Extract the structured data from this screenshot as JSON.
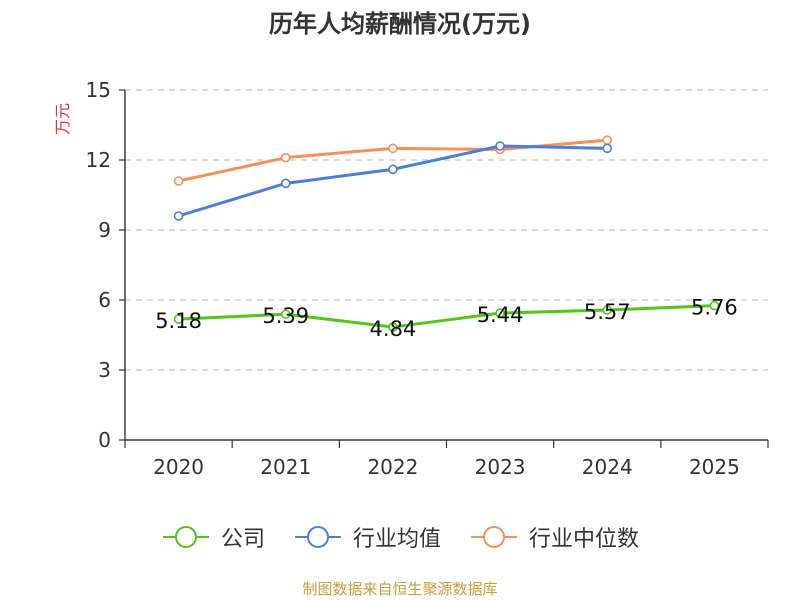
{
  "chart_data": {
    "type": "line",
    "title": "历年人均薪酬情况(万元)",
    "ylabel": "万元",
    "xlabel": "",
    "categories": [
      "2020",
      "2021",
      "2022",
      "2023",
      "2024",
      "2025"
    ],
    "ylim": [
      0,
      15
    ],
    "yticks": [
      0,
      3,
      6,
      9,
      12,
      15
    ],
    "grid": true,
    "legend_position": "bottom",
    "series": [
      {
        "name": "公司",
        "color": "#52c41a",
        "values": [
          5.18,
          5.39,
          4.84,
          5.44,
          5.57,
          5.76
        ],
        "labels": [
          "5.18",
          "5.39",
          "4.84",
          "5.44",
          "5.57",
          "5.76"
        ]
      },
      {
        "name": "行业均值",
        "color": "#4a7fd4",
        "values": [
          9.6,
          11.0,
          11.6,
          12.6,
          12.5,
          null
        ]
      },
      {
        "name": "行业中位数",
        "color": "#f4905a",
        "values": [
          11.1,
          12.1,
          12.5,
          12.45,
          12.85,
          null
        ]
      }
    ]
  },
  "source": "制图数据来自恒生聚源数据库"
}
